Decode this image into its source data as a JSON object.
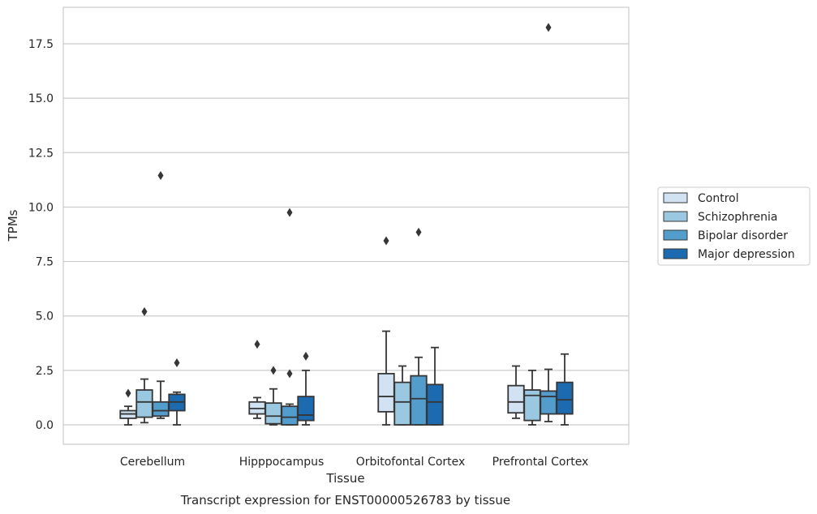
{
  "chart_data": {
    "type": "box",
    "title": "",
    "caption": "Transcript expression for ENST00000526783 by tissue",
    "xlabel": "Tissue",
    "ylabel": "TPMs",
    "ylim": [
      -0.9,
      19.2
    ],
    "yticks": [
      0.0,
      2.5,
      5.0,
      7.5,
      10.0,
      12.5,
      15.0,
      17.5
    ],
    "ytick_labels": [
      "0.0",
      "2.5",
      "5.0",
      "7.5",
      "10.0",
      "12.5",
      "15.0",
      "17.5"
    ],
    "grid": "horizontal",
    "legend_position": "right",
    "categories": [
      "Cerebellum",
      "Hipppocampus",
      "Orbitofontal Cortex",
      "Prefrontal Cortex"
    ],
    "series": [
      {
        "name": "Control",
        "color": "#d1e2f2",
        "boxes": [
          {
            "whisker_low": 0.0,
            "q1": 0.3,
            "median": 0.5,
            "q3": 0.65,
            "whisker_high": 0.85,
            "outliers": [
              1.45
            ]
          },
          {
            "whisker_low": 0.3,
            "q1": 0.5,
            "median": 0.75,
            "q3": 1.05,
            "whisker_high": 1.25,
            "outliers": [
              3.7
            ]
          },
          {
            "whisker_low": 0.0,
            "q1": 0.6,
            "median": 1.3,
            "q3": 2.35,
            "whisker_high": 4.3,
            "outliers": [
              8.45
            ]
          },
          {
            "whisker_low": 0.3,
            "q1": 0.55,
            "median": 1.05,
            "q3": 1.8,
            "whisker_high": 2.7,
            "outliers": []
          }
        ]
      },
      {
        "name": "Schizophrenia",
        "color": "#9ac8e0",
        "boxes": [
          {
            "whisker_low": 0.1,
            "q1": 0.35,
            "median": 1.05,
            "q3": 1.6,
            "whisker_high": 2.1,
            "outliers": [
              5.2
            ]
          },
          {
            "whisker_low": 0.0,
            "q1": 0.05,
            "median": 0.4,
            "q3": 1.0,
            "whisker_high": 1.65,
            "outliers": [
              2.5
            ]
          },
          {
            "whisker_low": 0.0,
            "q1": 0.0,
            "median": 1.05,
            "q3": 1.95,
            "whisker_high": 2.7,
            "outliers": []
          },
          {
            "whisker_low": 0.0,
            "q1": 0.2,
            "median": 1.35,
            "q3": 1.6,
            "whisker_high": 2.5,
            "outliers": []
          }
        ]
      },
      {
        "name": "Bipolar disorder",
        "color": "#529dcc",
        "boxes": [
          {
            "whisker_low": 0.3,
            "q1": 0.4,
            "median": 0.65,
            "q3": 1.05,
            "whisker_high": 2.0,
            "outliers": [
              11.45
            ]
          },
          {
            "whisker_low": 0.0,
            "q1": 0.0,
            "median": 0.35,
            "q3": 0.85,
            "whisker_high": 0.95,
            "outliers": [
              2.35,
              9.75
            ]
          },
          {
            "whisker_low": 0.0,
            "q1": 0.0,
            "median": 1.2,
            "q3": 2.25,
            "whisker_high": 3.1,
            "outliers": [
              8.85
            ]
          },
          {
            "whisker_low": 0.15,
            "q1": 0.5,
            "median": 1.3,
            "q3": 1.55,
            "whisker_high": 2.55,
            "outliers": [
              18.25
            ]
          }
        ]
      },
      {
        "name": "Major depression",
        "color": "#1c6aaf",
        "boxes": [
          {
            "whisker_low": 0.0,
            "q1": 0.65,
            "median": 1.05,
            "q3": 1.4,
            "whisker_high": 1.5,
            "outliers": [
              2.85
            ]
          },
          {
            "whisker_low": 0.0,
            "q1": 0.2,
            "median": 0.45,
            "q3": 1.3,
            "whisker_high": 2.5,
            "outliers": [
              3.15
            ]
          },
          {
            "whisker_low": 0.0,
            "q1": 0.0,
            "median": 1.05,
            "q3": 1.85,
            "whisker_high": 3.55,
            "outliers": []
          },
          {
            "whisker_low": 0.0,
            "q1": 0.5,
            "median": 1.15,
            "q3": 1.95,
            "whisker_high": 3.25,
            "outliers": []
          }
        ]
      }
    ]
  }
}
